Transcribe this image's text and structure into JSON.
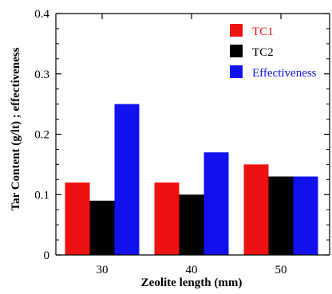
{
  "chart_data": {
    "type": "bar",
    "title": "",
    "xlabel": "Zeolite length (mm)",
    "ylabel": "Tar Content (g/lt) ; effectiveness",
    "categories": [
      "30",
      "40",
      "50"
    ],
    "ylim": [
      0,
      0.4
    ],
    "yticks": [
      "0",
      "0.1",
      "0.2",
      "0.3",
      "0.4"
    ],
    "grid": false,
    "legend_position": "top-right",
    "series": [
      {
        "name": "TC1",
        "values": [
          0.12,
          0.12,
          0.15
        ],
        "color": "#ee1111",
        "label_color": "#ee1111"
      },
      {
        "name": "TC2",
        "values": [
          0.09,
          0.1,
          0.13
        ],
        "color": "#000000",
        "label_color": "#000000"
      },
      {
        "name": "Effectiveness",
        "values": [
          0.25,
          0.17,
          0.13
        ],
        "color": "#1111ee",
        "label_color": "#1111ee"
      }
    ]
  }
}
